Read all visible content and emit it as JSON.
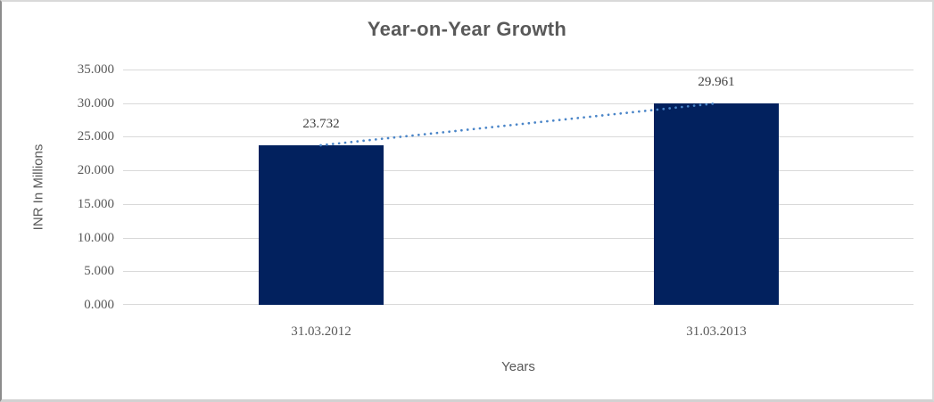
{
  "chart": {
    "title": "Year-on-Year Growth",
    "y_axis_title": "INR In Millions",
    "x_axis_title": "Years"
  },
  "chart_data": {
    "type": "bar",
    "title": "Year-on-Year Growth",
    "xlabel": "Years",
    "ylabel": "INR In Millions",
    "categories": [
      "31.03.2012",
      "31.03.2013"
    ],
    "series": [
      {
        "name": "inr-bars",
        "type": "bar",
        "values": [
          23732,
          29961
        ],
        "color": "#02215E"
      },
      {
        "name": "growth-trendline",
        "type": "dotted-line",
        "values": [
          23732,
          29961
        ],
        "color": "#4A85C8"
      }
    ],
    "data_labels": [
      "23.732",
      "29.961"
    ],
    "y_ticks": [
      {
        "value": 35000,
        "label": "35.000"
      },
      {
        "value": 30000,
        "label": "30.000"
      },
      {
        "value": 25000,
        "label": "25.000"
      },
      {
        "value": 20000,
        "label": "20.000"
      },
      {
        "value": 15000,
        "label": "15.000"
      },
      {
        "value": 10000,
        "label": "10.000"
      },
      {
        "value": 5000,
        "label": "5.000"
      },
      {
        "value": 0,
        "label": "0.000"
      }
    ],
    "ylim": [
      0,
      35000
    ],
    "grid": true,
    "gridline_color": "#D9D9D9",
    "background_color": "#FFFFFF",
    "text_color": "#595959",
    "data_label_color": "#404040",
    "legend": "none"
  }
}
